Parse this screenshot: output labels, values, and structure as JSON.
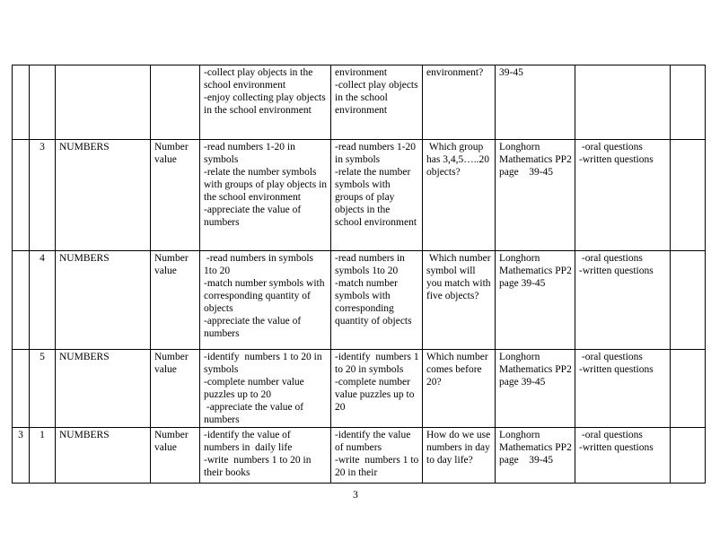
{
  "page": {
    "number": "3"
  },
  "table": {
    "rows": [
      {
        "week": "",
        "lesson": "",
        "strand": "",
        "sub_strand": "",
        "outcomes": [
          "-collect play objects in the school environment",
          "-enjoy collecting play objects in the school environment"
        ],
        "activities": [
          "environment",
          "-collect play objects in the school environment"
        ],
        "key_inquiry": "environment?",
        "resources": "39-45",
        "assessment": [],
        "remarks": ""
      },
      {
        "week": "",
        "lesson": "3",
        "strand": "NUMBERS",
        "sub_strand": "Number value",
        "outcomes": [
          "-read numbers 1-20 in symbols",
          "-relate the number symbols with groups of play objects in the school environment",
          "-appreciate the value of numbers"
        ],
        "activities": [
          "-read numbers 1-20 in symbols",
          "-relate the number symbols with groups of play objects in the school environment"
        ],
        "key_inquiry": " Which group has 3,4,5…..20 objects?",
        "resources": "Longhorn Mathematics PP2 page    39-45",
        "assessment": [
          " -oral questions",
          "-written questions"
        ],
        "remarks": ""
      },
      {
        "week": "",
        "lesson": "4",
        "strand": "NUMBERS",
        "sub_strand": "Number value",
        "outcomes": [
          " -read numbers in symbols 1to 20",
          "-match number symbols with corresponding quantity of objects",
          "-appreciate the value of numbers"
        ],
        "activities": [
          "-read numbers in symbols 1to 20",
          "-match number symbols with corresponding quantity of objects"
        ],
        "key_inquiry": " Which number symbol will you match with five objects?",
        "resources": "Longhorn Mathematics PP2 page 39-45",
        "assessment": [
          " -oral questions",
          "-written questions"
        ],
        "remarks": ""
      },
      {
        "week": "",
        "lesson": "5",
        "strand": "NUMBERS",
        "sub_strand": "Number value",
        "outcomes": [
          "-identify  numbers 1 to 20 in symbols",
          "-complete number value puzzles up to 20",
          " -appreciate the value of numbers"
        ],
        "activities": [
          "-identify  numbers 1 to 20 in symbols",
          "-complete number value puzzles up to 20"
        ],
        "key_inquiry": "Which number comes before 20?",
        "resources": "Longhorn Mathematics PP2 page 39-45",
        "assessment": [
          " -oral questions",
          "-written questions"
        ],
        "remarks": ""
      },
      {
        "week": "3",
        "lesson": "1",
        "strand": "NUMBERS",
        "sub_strand": "Number value",
        "outcomes": [
          "-identify the value of numbers in  daily life",
          "-write  numbers 1 to 20 in their books"
        ],
        "activities": [
          "-identify the value of numbers",
          "-write  numbers 1 to 20 in their"
        ],
        "key_inquiry": "How do we use numbers in day to day life?",
        "resources": "Longhorn Mathematics PP2 page    39-45",
        "assessment": [
          " -oral questions",
          "-written questions"
        ],
        "remarks": ""
      }
    ]
  }
}
